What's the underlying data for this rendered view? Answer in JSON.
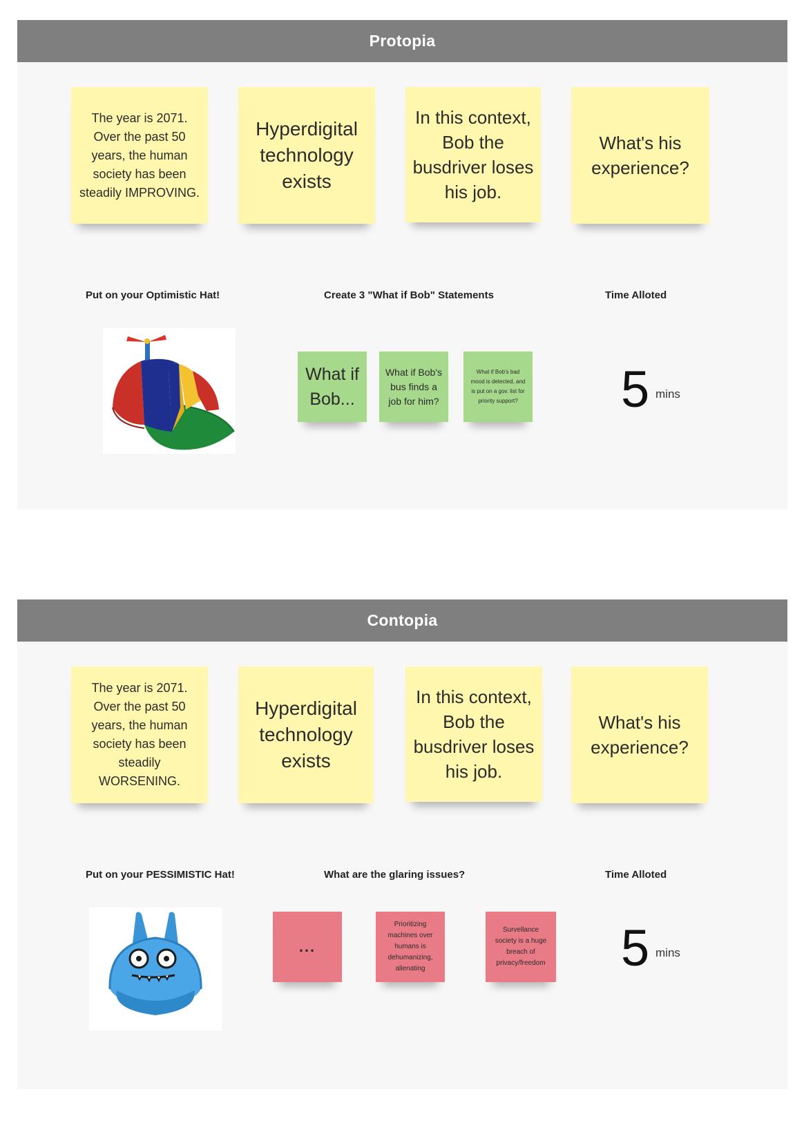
{
  "sections": [
    {
      "title": "Protopia",
      "notes": [
        "The year is 2071. Over the past 50 years, the human society has been steadily IMPROVING.",
        "Hyperdigital technology exists",
        "In this context, Bob the busdriver loses his job.",
        "What's his experience?"
      ],
      "hat_label": "Put on your Optimistic Hat!",
      "task_label": "Create 3 \"What if Bob\" Statements",
      "time_label": "Time Alloted",
      "time_value": "5",
      "time_unit": "mins",
      "task_notes": [
        "What if Bob...",
        "What if Bob's bus finds a job for him?",
        "What if Bob's bad mood is detected, and is put on a gov. list for priority support?"
      ],
      "hat_image": "propeller-beanie-cap"
    },
    {
      "title": "Contopia",
      "notes": [
        "The year is 2071. Over the past 50 years, the human society has been steadily WORSENING.",
        "Hyperdigital technology exists",
        "In this context, Bob the busdriver loses his job.",
        "What's his experience?"
      ],
      "hat_label": "Put on your PESSIMISTIC Hat!",
      "task_label": "What are the glaring issues?",
      "time_label": "Time Alloted",
      "time_value": "5",
      "time_unit": "mins",
      "task_notes": [
        "...",
        "Prioritizing machines over humans is dehumanizing, alienating",
        "Survellance society is a huge breach of privacy/freedom"
      ],
      "hat_image": "blue-monster-cap"
    }
  ],
  "colors": {
    "header": "#7f7f7f",
    "yellow_sticky": "#fff7ae",
    "green_sticky": "#a6d98c",
    "red_sticky": "#e97b86"
  }
}
